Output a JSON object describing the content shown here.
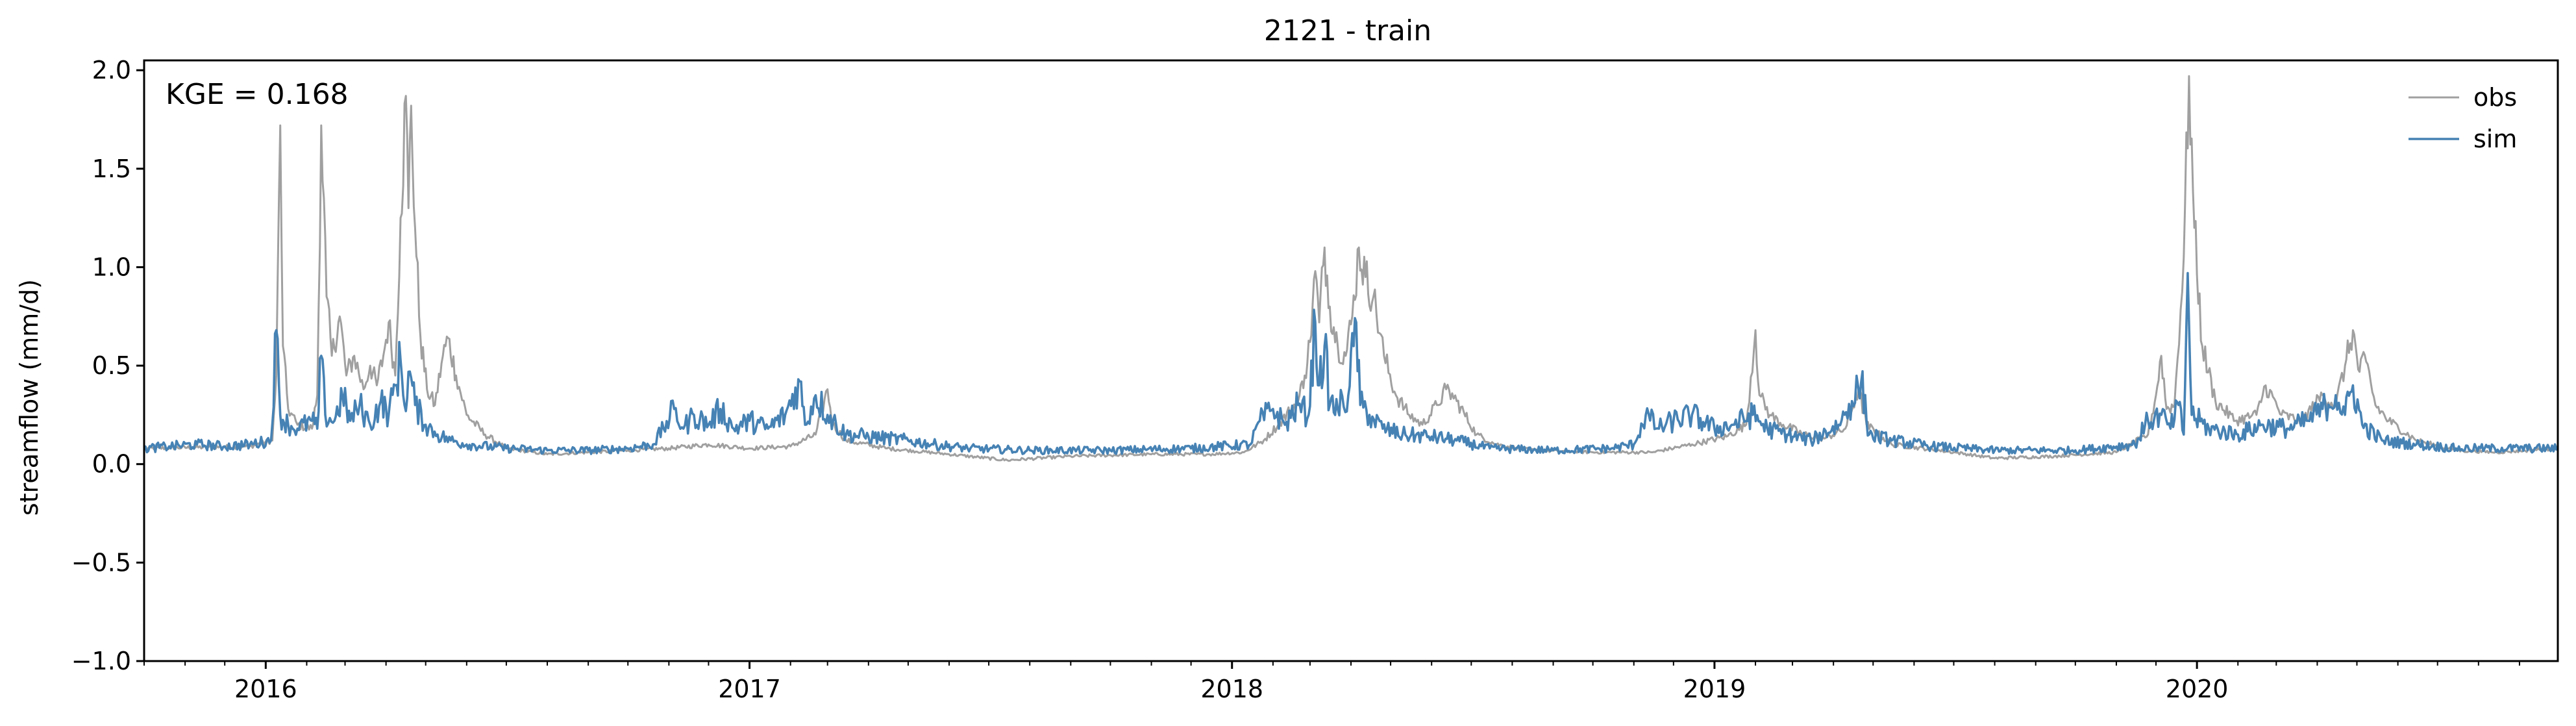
{
  "chart_data": {
    "type": "line",
    "title": "2121 - train",
    "xlabel": "",
    "ylabel": "streamflow (mm/d)",
    "annotation": "KGE = 0.168",
    "x_range": [
      "2015-10-01",
      "2020-09-30"
    ],
    "ylim": [
      -1.0,
      2.05
    ],
    "yticks": [
      -1.0,
      -0.5,
      0.0,
      0.5,
      1.0,
      1.5,
      2.0
    ],
    "ytick_labels": [
      "−1.0",
      "−0.5",
      "0.0",
      "0.5",
      "1.0",
      "1.5",
      "2.0"
    ],
    "xticks": [
      "2016-01-01",
      "2017-01-01",
      "2018-01-01",
      "2019-01-01",
      "2020-01-01"
    ],
    "xtick_labels": [
      "2016",
      "2017",
      "2018",
      "2019",
      "2020"
    ],
    "grid": false,
    "legend_position": "top-right",
    "series": [
      {
        "name": "obs",
        "color": "#a0a0a0",
        "points": [
          [
            "2015-10-01",
            0.08
          ],
          [
            "2015-12-20",
            0.09
          ],
          [
            "2016-01-06",
            0.12
          ],
          [
            "2016-01-09",
            0.45
          ],
          [
            "2016-01-12",
            1.72
          ],
          [
            "2016-01-14",
            0.6
          ],
          [
            "2016-01-18",
            0.28
          ],
          [
            "2016-01-25",
            0.2
          ],
          [
            "2016-02-05",
            0.18
          ],
          [
            "2016-02-09",
            0.35
          ],
          [
            "2016-02-12",
            1.72
          ],
          [
            "2016-02-16",
            0.85
          ],
          [
            "2016-02-20",
            0.55
          ],
          [
            "2016-02-26",
            0.75
          ],
          [
            "2016-03-02",
            0.45
          ],
          [
            "2016-03-08",
            0.55
          ],
          [
            "2016-03-15",
            0.38
          ],
          [
            "2016-03-20",
            0.5
          ],
          [
            "2016-03-25",
            0.4
          ],
          [
            "2016-03-30",
            0.55
          ],
          [
            "2016-04-03",
            0.72
          ],
          [
            "2016-04-08",
            0.45
          ],
          [
            "2016-04-12",
            1.25
          ],
          [
            "2016-04-16",
            1.87
          ],
          [
            "2016-04-18",
            1.3
          ],
          [
            "2016-04-20",
            1.82
          ],
          [
            "2016-04-23",
            1.2
          ],
          [
            "2016-04-27",
            0.65
          ],
          [
            "2016-05-02",
            0.38
          ],
          [
            "2016-05-08",
            0.3
          ],
          [
            "2016-05-14",
            0.55
          ],
          [
            "2016-05-18",
            0.64
          ],
          [
            "2016-05-24",
            0.45
          ],
          [
            "2016-06-01",
            0.25
          ],
          [
            "2016-06-15",
            0.15
          ],
          [
            "2016-07-01",
            0.08
          ],
          [
            "2016-08-01",
            0.05
          ],
          [
            "2016-09-01",
            0.06
          ],
          [
            "2016-10-01",
            0.07
          ],
          [
            "2016-11-01",
            0.08
          ],
          [
            "2016-12-01",
            0.1
          ],
          [
            "2017-01-01",
            0.08
          ],
          [
            "2017-02-01",
            0.09
          ],
          [
            "2017-02-20",
            0.15
          ],
          [
            "2017-03-01",
            0.38
          ],
          [
            "2017-03-05",
            0.2
          ],
          [
            "2017-03-15",
            0.12
          ],
          [
            "2017-04-15",
            0.08
          ],
          [
            "2017-06-01",
            0.05
          ],
          [
            "2017-07-15",
            0.02
          ],
          [
            "2017-09-01",
            0.04
          ],
          [
            "2017-11-01",
            0.05
          ],
          [
            "2017-12-15",
            0.05
          ],
          [
            "2018-01-10",
            0.06
          ],
          [
            "2018-01-25",
            0.12
          ],
          [
            "2018-02-05",
            0.2
          ],
          [
            "2018-02-15",
            0.28
          ],
          [
            "2018-02-20",
            0.32
          ],
          [
            "2018-02-25",
            0.45
          ],
          [
            "2018-03-01",
            0.62
          ],
          [
            "2018-03-05",
            0.98
          ],
          [
            "2018-03-08",
            0.72
          ],
          [
            "2018-03-12",
            1.1
          ],
          [
            "2018-03-16",
            0.8
          ],
          [
            "2018-03-22",
            0.6
          ],
          [
            "2018-03-28",
            0.55
          ],
          [
            "2018-04-02",
            0.75
          ],
          [
            "2018-04-07",
            1.1
          ],
          [
            "2018-04-12",
            0.95
          ],
          [
            "2018-04-18",
            0.85
          ],
          [
            "2018-04-26",
            0.55
          ],
          [
            "2018-05-05",
            0.35
          ],
          [
            "2018-05-15",
            0.25
          ],
          [
            "2018-05-25",
            0.2
          ],
          [
            "2018-06-05",
            0.3
          ],
          [
            "2018-06-12",
            0.38
          ],
          [
            "2018-06-20",
            0.32
          ],
          [
            "2018-07-05",
            0.15
          ],
          [
            "2018-07-20",
            0.1
          ],
          [
            "2018-08-15",
            0.07
          ],
          [
            "2018-10-01",
            0.06
          ],
          [
            "2018-11-15",
            0.06
          ],
          [
            "2018-12-15",
            0.1
          ],
          [
            "2019-01-10",
            0.14
          ],
          [
            "2019-01-25",
            0.2
          ],
          [
            "2019-02-01",
            0.68
          ],
          [
            "2019-02-04",
            0.35
          ],
          [
            "2019-02-12",
            0.25
          ],
          [
            "2019-02-22",
            0.2
          ],
          [
            "2019-03-10",
            0.15
          ],
          [
            "2019-03-25",
            0.13
          ],
          [
            "2019-04-10",
            0.18
          ],
          [
            "2019-04-20",
            0.38
          ],
          [
            "2019-04-26",
            0.2
          ],
          [
            "2019-05-15",
            0.1
          ],
          [
            "2019-07-01",
            0.06
          ],
          [
            "2019-08-01",
            0.03
          ],
          [
            "2019-09-15",
            0.04
          ],
          [
            "2019-11-01",
            0.06
          ],
          [
            "2019-11-25",
            0.15
          ],
          [
            "2019-12-01",
            0.35
          ],
          [
            "2019-12-05",
            0.55
          ],
          [
            "2019-12-09",
            0.28
          ],
          [
            "2019-12-15",
            0.3
          ],
          [
            "2019-12-22",
            1.05
          ],
          [
            "2019-12-26",
            1.97
          ],
          [
            "2019-12-30",
            1.2
          ],
          [
            "2020-01-05",
            0.6
          ],
          [
            "2020-01-15",
            0.32
          ],
          [
            "2020-01-30",
            0.22
          ],
          [
            "2020-02-15",
            0.25
          ],
          [
            "2020-02-22",
            0.4
          ],
          [
            "2020-03-05",
            0.25
          ],
          [
            "2020-03-20",
            0.22
          ],
          [
            "2020-04-05",
            0.35
          ],
          [
            "2020-04-15",
            0.3
          ],
          [
            "2020-04-22",
            0.5
          ],
          [
            "2020-04-28",
            0.68
          ],
          [
            "2020-05-02",
            0.48
          ],
          [
            "2020-05-08",
            0.52
          ],
          [
            "2020-05-15",
            0.3
          ],
          [
            "2020-05-25",
            0.22
          ],
          [
            "2020-06-15",
            0.12
          ],
          [
            "2020-07-15",
            0.07
          ],
          [
            "2020-08-15",
            0.06
          ],
          [
            "2020-09-30",
            0.08
          ]
        ]
      },
      {
        "name": "sim",
        "color": "#4682b4",
        "points": [
          [
            "2015-10-01",
            0.08
          ],
          [
            "2015-10-20",
            0.09
          ],
          [
            "2015-11-10",
            0.1
          ],
          [
            "2015-12-01",
            0.09
          ],
          [
            "2015-12-20",
            0.1
          ],
          [
            "2016-01-05",
            0.12
          ],
          [
            "2016-01-09",
            0.68
          ],
          [
            "2016-01-12",
            0.25
          ],
          [
            "2016-01-18",
            0.2
          ],
          [
            "2016-01-25",
            0.18
          ],
          [
            "2016-02-05",
            0.22
          ],
          [
            "2016-02-09",
            0.18
          ],
          [
            "2016-02-12",
            0.55
          ],
          [
            "2016-02-15",
            0.25
          ],
          [
            "2016-02-22",
            0.22
          ],
          [
            "2016-02-28",
            0.35
          ],
          [
            "2016-03-05",
            0.22
          ],
          [
            "2016-03-12",
            0.3
          ],
          [
            "2016-03-20",
            0.2
          ],
          [
            "2016-03-28",
            0.32
          ],
          [
            "2016-04-03",
            0.25
          ],
          [
            "2016-04-08",
            0.4
          ],
          [
            "2016-04-12",
            0.53
          ],
          [
            "2016-04-15",
            0.3
          ],
          [
            "2016-04-19",
            0.47
          ],
          [
            "2016-04-23",
            0.3
          ],
          [
            "2016-05-01",
            0.2
          ],
          [
            "2016-05-10",
            0.15
          ],
          [
            "2016-05-20",
            0.12
          ],
          [
            "2016-06-01",
            0.1
          ],
          [
            "2016-07-01",
            0.08
          ],
          [
            "2016-08-01",
            0.07
          ],
          [
            "2016-09-01",
            0.07
          ],
          [
            "2016-10-01",
            0.08
          ],
          [
            "2016-10-20",
            0.1
          ],
          [
            "2016-10-28",
            0.18
          ],
          [
            "2016-11-05",
            0.28
          ],
          [
            "2016-11-12",
            0.18
          ],
          [
            "2016-11-20",
            0.25
          ],
          [
            "2016-12-01",
            0.2
          ],
          [
            "2016-12-10",
            0.28
          ],
          [
            "2016-12-20",
            0.18
          ],
          [
            "2017-01-01",
            0.22
          ],
          [
            "2017-01-15",
            0.18
          ],
          [
            "2017-01-28",
            0.25
          ],
          [
            "2017-02-08",
            0.42
          ],
          [
            "2017-02-12",
            0.2
          ],
          [
            "2017-02-20",
            0.35
          ],
          [
            "2017-03-01",
            0.25
          ],
          [
            "2017-03-15",
            0.15
          ],
          [
            "2017-04-01",
            0.14
          ],
          [
            "2017-05-01",
            0.12
          ],
          [
            "2017-05-20",
            0.1
          ],
          [
            "2017-06-15",
            0.08
          ],
          [
            "2017-08-01",
            0.07
          ],
          [
            "2017-10-01",
            0.07
          ],
          [
            "2017-12-01",
            0.08
          ],
          [
            "2018-01-15",
            0.1
          ],
          [
            "2018-01-22",
            0.22
          ],
          [
            "2018-02-01",
            0.28
          ],
          [
            "2018-02-10",
            0.2
          ],
          [
            "2018-02-20",
            0.3
          ],
          [
            "2018-02-28",
            0.25
          ],
          [
            "2018-03-05",
            0.72
          ],
          [
            "2018-03-08",
            0.4
          ],
          [
            "2018-03-12",
            0.6
          ],
          [
            "2018-03-16",
            0.3
          ],
          [
            "2018-03-22",
            0.28
          ],
          [
            "2018-03-30",
            0.35
          ],
          [
            "2018-04-05",
            0.72
          ],
          [
            "2018-04-08",
            0.3
          ],
          [
            "2018-04-15",
            0.25
          ],
          [
            "2018-04-25",
            0.18
          ],
          [
            "2018-05-10",
            0.15
          ],
          [
            "2018-06-01",
            0.14
          ],
          [
            "2018-06-20",
            0.12
          ],
          [
            "2018-07-15",
            0.08
          ],
          [
            "2018-09-01",
            0.07
          ],
          [
            "2018-10-15",
            0.08
          ],
          [
            "2018-11-01",
            0.1
          ],
          [
            "2018-11-10",
            0.25
          ],
          [
            "2018-11-20",
            0.18
          ],
          [
            "2018-12-01",
            0.22
          ],
          [
            "2018-12-15",
            0.25
          ],
          [
            "2019-01-01",
            0.18
          ],
          [
            "2019-01-15",
            0.2
          ],
          [
            "2019-01-30",
            0.25
          ],
          [
            "2019-02-10",
            0.18
          ],
          [
            "2019-02-25",
            0.15
          ],
          [
            "2019-03-15",
            0.12
          ],
          [
            "2019-04-05",
            0.2
          ],
          [
            "2019-04-15",
            0.32
          ],
          [
            "2019-04-22",
            0.42
          ],
          [
            "2019-04-28",
            0.15
          ],
          [
            "2019-05-15",
            0.12
          ],
          [
            "2019-06-15",
            0.09
          ],
          [
            "2019-08-01",
            0.07
          ],
          [
            "2019-10-01",
            0.07
          ],
          [
            "2019-11-15",
            0.1
          ],
          [
            "2019-11-25",
            0.22
          ],
          [
            "2019-12-05",
            0.25
          ],
          [
            "2019-12-12",
            0.18
          ],
          [
            "2019-12-18",
            0.3
          ],
          [
            "2019-12-22",
            0.15
          ],
          [
            "2019-12-25",
            0.97
          ],
          [
            "2019-12-28",
            0.25
          ],
          [
            "2020-01-10",
            0.18
          ],
          [
            "2020-02-01",
            0.15
          ],
          [
            "2020-02-20",
            0.2
          ],
          [
            "2020-03-10",
            0.18
          ],
          [
            "2020-03-25",
            0.22
          ],
          [
            "2020-04-05",
            0.28
          ],
          [
            "2020-04-15",
            0.35
          ],
          [
            "2020-04-22",
            0.25
          ],
          [
            "2020-04-28",
            0.4
          ],
          [
            "2020-05-05",
            0.2
          ],
          [
            "2020-05-20",
            0.12
          ],
          [
            "2020-06-15",
            0.1
          ],
          [
            "2020-07-15",
            0.08
          ],
          [
            "2020-09-30",
            0.08
          ]
        ]
      }
    ]
  }
}
